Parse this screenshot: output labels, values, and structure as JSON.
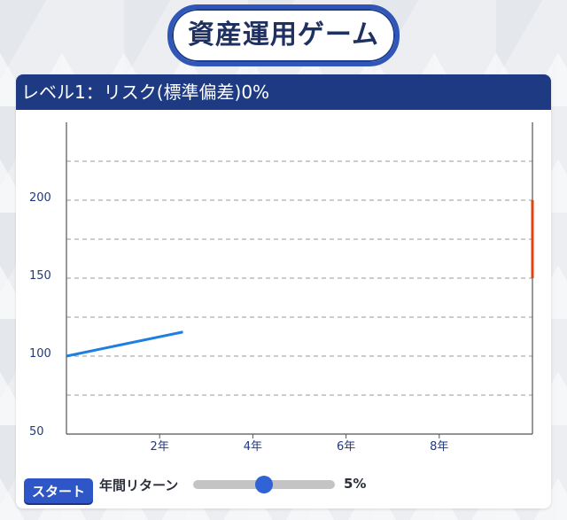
{
  "app": {
    "title": "資産運用ゲーム"
  },
  "panel": {
    "header": "レベル1：リスク(標準偏差)0%"
  },
  "controls": {
    "start_label": "スタート",
    "return_label": "年間リターン",
    "return_value_text": "5%",
    "return_fraction": 0.5
  },
  "colors": {
    "line": "#1e7fe0",
    "marker": "#e0440e",
    "header_bg": "#1e3a82",
    "button": "#2e56c6"
  },
  "chart_data": {
    "type": "line",
    "title": "",
    "xlabel": "",
    "ylabel": "",
    "xlim": [
      0,
      10
    ],
    "ylim": [
      50,
      250
    ],
    "x_ticks": [
      2,
      4,
      6,
      8
    ],
    "x_tick_labels": [
      "2年",
      "4年",
      "6年",
      "8年"
    ],
    "y_ticks": [
      50,
      100,
      150,
      200
    ],
    "y_tick_labels": [
      "50",
      "100",
      "150",
      "200"
    ],
    "grid_y": [
      75,
      100,
      125,
      150,
      175,
      200,
      225
    ],
    "grid": true,
    "series": [
      {
        "x": [
          0,
          2.5
        ],
        "y": [
          100,
          115.5
        ]
      }
    ],
    "range_marker": {
      "x": 10,
      "y_low": 150,
      "y_high": 200
    }
  }
}
